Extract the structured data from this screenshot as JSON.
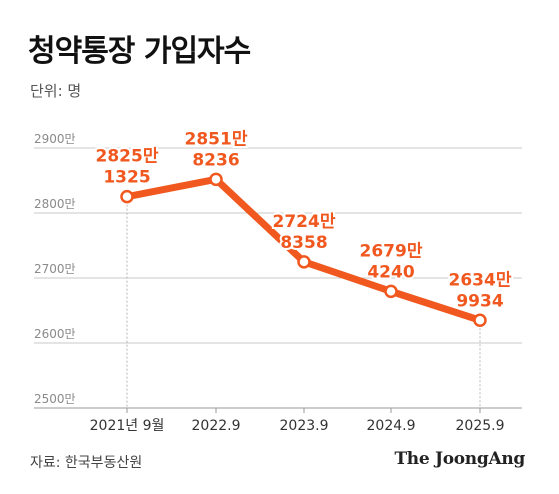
{
  "title": "청약통장 가입자수",
  "unit_label": "단위: 명",
  "source": "자료: 한국부동산원",
  "brand": "The JoongAng",
  "colors": {
    "accent": "#f0581f",
    "grid": "#c8c8c8",
    "tick": "#8a8a8a"
  },
  "chart_data": {
    "type": "line",
    "title": "청약통장 가입자수",
    "xlabel": "",
    "ylabel": "",
    "unit": "명",
    "categories": [
      "2021년 9월",
      "2022.9",
      "2023.9",
      "2024.9",
      "2025.9"
    ],
    "y_ticks": [
      {
        "value": 25000000,
        "label": "2500만"
      },
      {
        "value": 26000000,
        "label": "2600만"
      },
      {
        "value": 27000000,
        "label": "2700만"
      },
      {
        "value": 28000000,
        "label": "2800만"
      },
      {
        "value": 29000000,
        "label": "2900만"
      }
    ],
    "ylim": [
      25000000,
      29000000
    ],
    "grid": true,
    "series": [
      {
        "values": [
          28251325,
          28518236,
          27248358,
          26794240,
          26349934
        ],
        "labels": [
          [
            "2825만",
            "1325"
          ],
          [
            "2851만",
            "8236"
          ],
          [
            "2724만",
            "8358"
          ],
          [
            "2679만",
            "4240"
          ],
          [
            "2634만",
            "9934"
          ]
        ]
      }
    ]
  }
}
